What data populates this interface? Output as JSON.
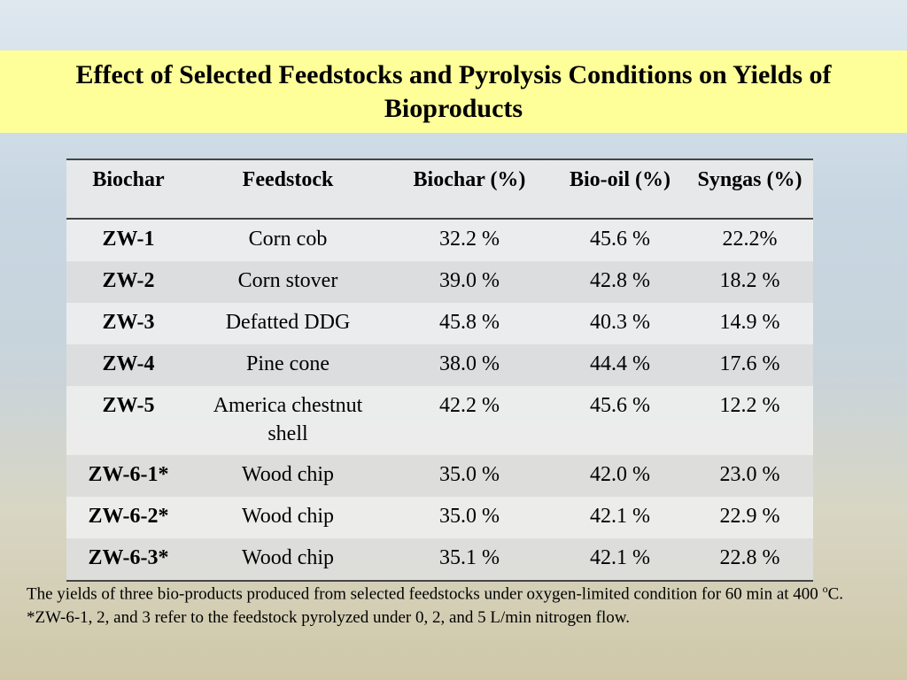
{
  "header": {
    "title": "Effect of Selected Feedstocks and Pyrolysis Conditions on Yields of Bioproducts"
  },
  "table": {
    "headers": [
      "Biochar",
      "Feedstock",
      "Biochar (%)",
      "Bio-oil (%)",
      "Syngas (%)"
    ],
    "rows": [
      [
        "ZW-1",
        "Corn cob",
        "32.2 %",
        "45.6 %",
        "22.2%"
      ],
      [
        "ZW-2",
        "Corn stover",
        "39.0 %",
        "42.8 %",
        "18.2 %"
      ],
      [
        "ZW-3",
        "Defatted DDG",
        "45.8 %",
        "40.3 %",
        "14.9 %"
      ],
      [
        "ZW-4",
        "Pine cone",
        "38.0 %",
        "44.4 %",
        "17.6 %"
      ],
      [
        "ZW-5",
        "America chestnut shell",
        "42.2 %",
        "45.6 %",
        "12.2 %"
      ],
      [
        "ZW-6-1*",
        "Wood chip",
        "35.0 %",
        "42.0 %",
        "23.0 %"
      ],
      [
        "ZW-6-2*",
        "Wood chip",
        "35.0 %",
        "42.1 %",
        "22.9 %"
      ],
      [
        "ZW-6-3*",
        "Wood chip",
        "35.1 %",
        "42.1 %",
        "22.8 %"
      ]
    ]
  },
  "notes": {
    "line1": [
      "The yields of three bio-products produced from selected feedstocks under oxygen-limited condition for 60 min at 400 ",
      "o",
      "C."
    ],
    "line2": "*ZW-6-1, 2, and 3 refer to the feedstock pyrolyzed under 0, 2, and 5 L/min nitrogen flow."
  }
}
